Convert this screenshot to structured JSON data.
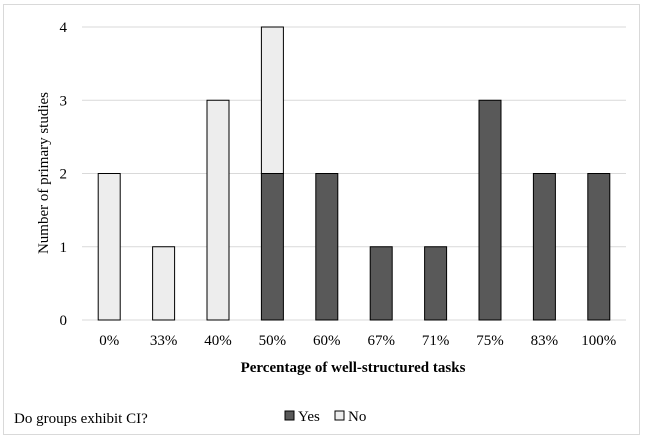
{
  "chart_data": {
    "type": "bar",
    "stacked": true,
    "categories": [
      "0%",
      "33%",
      "40%",
      "50%",
      "60%",
      "67%",
      "71%",
      "75%",
      "83%",
      "100%"
    ],
    "series": [
      {
        "name": "Yes",
        "color": "#595959",
        "values": [
          0,
          0,
          0,
          2,
          2,
          1,
          1,
          3,
          2,
          2
        ]
      },
      {
        "name": "No",
        "color": "#ededed",
        "values": [
          2,
          1,
          3,
          2,
          0,
          0,
          0,
          0,
          0,
          0
        ]
      }
    ],
    "xlabel": "Percentage of well-structured tasks",
    "ylabel": "Number of primary studies",
    "ylim": [
      0,
      4
    ],
    "yticks": [
      "0",
      "1",
      "2",
      "3",
      "4"
    ],
    "grid": true,
    "legend_title": "Do groups exhibit CI?",
    "legend_position": "bottom"
  }
}
